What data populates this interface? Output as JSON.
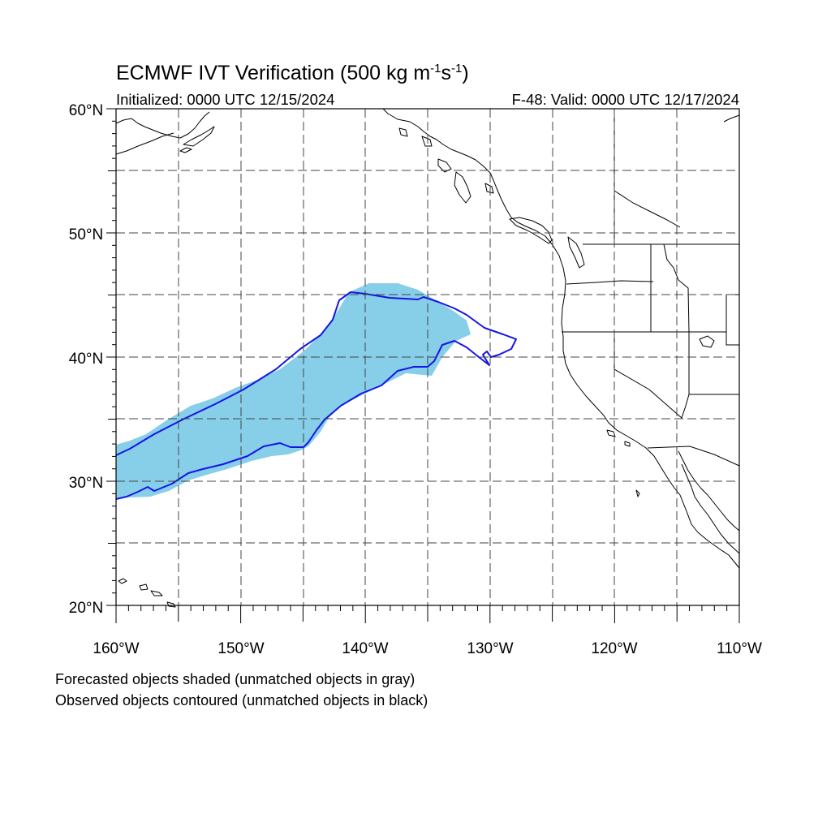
{
  "title": {
    "main": "ECMWF IVT Verification (500 kg m",
    "sup1": "-1",
    "mid": "s",
    "sup2": "-1",
    "end": ")"
  },
  "subtitle_left": "Initialized: 0000 UTC 12/15/2024",
  "subtitle_right": "F-48: Valid: 0000 UTC 12/17/2024",
  "lat_labels": [
    "60°N",
    "50°N",
    "40°N",
    "30°N",
    "20°N"
  ],
  "lon_labels": [
    "160°W",
    "150°W",
    "140°W",
    "130°W",
    "120°W",
    "110°W"
  ],
  "footnotes": [
    "Forecasted objects shaded (unmatched objects in gray)",
    "Observed objects contoured (unmatched objects in black)"
  ],
  "colors": {
    "forecast_fill": "#87CEE8",
    "observed_contour": "#1515E6",
    "grid": "#444444"
  },
  "map_extent": {
    "lon": [
      -160,
      -110
    ],
    "lat": [
      20,
      60
    ]
  }
}
